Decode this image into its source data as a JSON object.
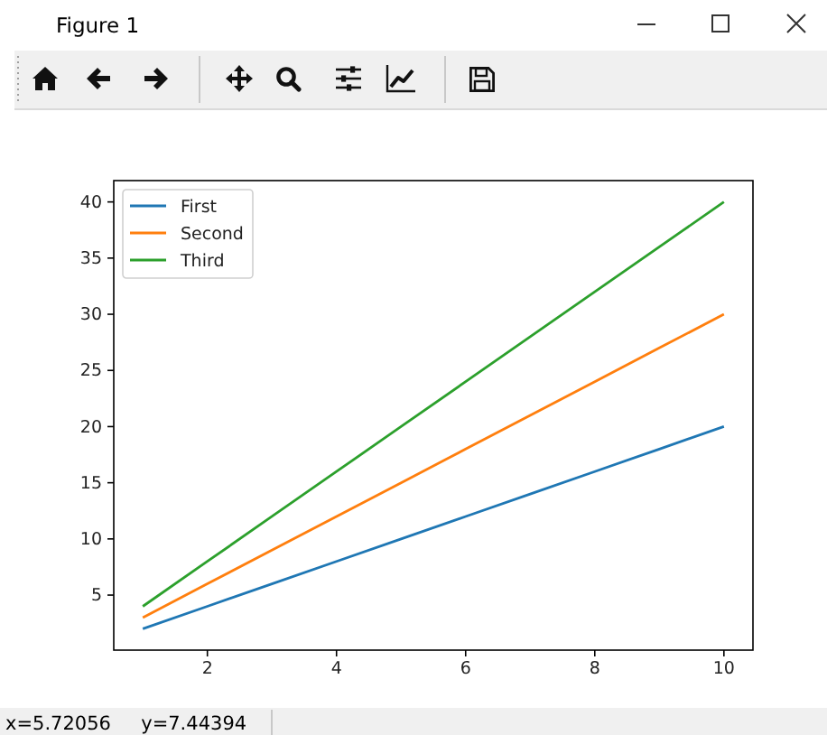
{
  "chart_data": {
    "type": "line",
    "x": [
      1,
      2,
      3,
      4,
      5,
      6,
      7,
      8,
      9,
      10
    ],
    "series": [
      {
        "name": "First",
        "color": "#1f77b4",
        "values": [
          2,
          4,
          6,
          8,
          10,
          12,
          14,
          16,
          18,
          20
        ]
      },
      {
        "name": "Second",
        "color": "#ff7f0e",
        "values": [
          3,
          6,
          9,
          12,
          15,
          18,
          21,
          24,
          27,
          30
        ]
      },
      {
        "name": "Third",
        "color": "#2ca02c",
        "values": [
          4,
          8,
          12,
          16,
          20,
          24,
          28,
          32,
          36,
          40
        ]
      }
    ],
    "xlim": [
      0.55,
      10.45
    ],
    "ylim": [
      0.1,
      41.9
    ],
    "xticks": [
      2,
      4,
      6,
      8,
      10
    ],
    "yticks": [
      5,
      10,
      15,
      20,
      25,
      30,
      35,
      40
    ],
    "legend": "top left",
    "annotations": [
      "Figure 1",
      "x=5.72056     y=7.44394"
    ]
  }
}
